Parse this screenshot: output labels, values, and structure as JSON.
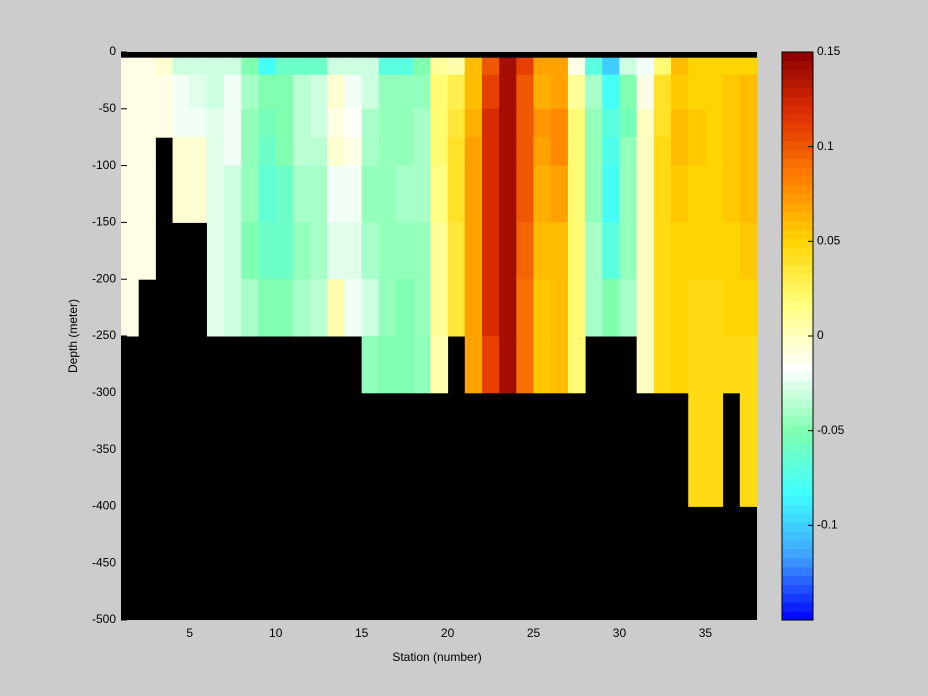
{
  "chart_data": {
    "type": "heatmap",
    "xlabel": "Station (number)",
    "ylabel": "Depth (meter)",
    "x_edges": [
      1,
      2,
      3,
      4,
      5,
      6,
      7,
      8,
      9,
      10,
      11,
      12,
      13,
      14,
      15,
      16,
      17,
      18,
      19,
      20,
      21,
      22,
      23,
      24,
      25,
      26,
      27,
      28,
      29,
      30,
      31,
      32,
      33,
      34,
      35,
      36,
      37,
      38
    ],
    "y_edges": [
      0,
      -5,
      -20,
      -50,
      -75,
      -100,
      -150,
      -200,
      -250,
      -300,
      -400
    ],
    "xlim": [
      1,
      38
    ],
    "ylim": [
      -500,
      0
    ],
    "xticks": [
      5,
      10,
      15,
      20,
      25,
      30,
      35
    ],
    "yticks": [
      0,
      -50,
      -100,
      -150,
      -200,
      -250,
      -300,
      -350,
      -400,
      -450,
      -500
    ],
    "clim": [
      -0.15,
      0.15
    ],
    "cticks": [
      0.15,
      0.1,
      0.05,
      0,
      -0.05,
      -0.1
    ],
    "colormap": [
      "#0000ff",
      "#3fa0ff",
      "#3fffff",
      "#7fffaf",
      "#ffffff",
      "#ffff7f",
      "#ffd500",
      "#ff8000",
      "#e03000",
      "#8b0000"
    ],
    "nan_color": "#000000",
    "z": [
      [
        null,
        -0.01,
        -0.01,
        -0.01,
        -0.01,
        -0.01,
        -0.01,
        -0.01,
        null,
        null
      ],
      [
        null,
        -0.01,
        -0.01,
        -0.01,
        -0.01,
        -0.01,
        -0.01,
        null,
        null,
        null
      ],
      [
        null,
        -0.005,
        -0.01,
        -0.01,
        null,
        null,
        null,
        null,
        null,
        null
      ],
      [
        null,
        -0.03,
        -0.02,
        -0.02,
        -0.005,
        -0.005,
        null,
        null,
        null,
        null
      ],
      [
        null,
        -0.03,
        -0.025,
        -0.02,
        -0.005,
        -0.005,
        null,
        null,
        null,
        null
      ],
      [
        null,
        -0.03,
        -0.03,
        -0.025,
        -0.025,
        -0.025,
        -0.025,
        -0.025,
        null,
        null
      ],
      [
        null,
        -0.03,
        -0.02,
        -0.02,
        -0.02,
        -0.03,
        -0.03,
        -0.03,
        null,
        null
      ],
      [
        null,
        -0.05,
        -0.04,
        -0.045,
        -0.045,
        -0.045,
        -0.05,
        -0.04,
        null,
        null
      ],
      [
        null,
        -0.08,
        -0.05,
        -0.055,
        -0.06,
        -0.065,
        -0.06,
        -0.05,
        null,
        null
      ],
      [
        null,
        -0.06,
        -0.05,
        -0.05,
        -0.05,
        -0.06,
        -0.06,
        -0.05,
        null,
        null
      ],
      [
        null,
        -0.06,
        -0.035,
        -0.035,
        -0.035,
        -0.04,
        -0.045,
        -0.04,
        null,
        null
      ],
      [
        null,
        -0.06,
        -0.03,
        -0.03,
        -0.035,
        -0.04,
        -0.04,
        -0.035,
        null,
        null
      ],
      [
        null,
        -0.03,
        -0.005,
        -0.01,
        -0.005,
        -0.02,
        -0.025,
        0.005,
        null,
        null
      ],
      [
        null,
        -0.03,
        -0.02,
        -0.015,
        -0.01,
        -0.02,
        -0.025,
        -0.02,
        null,
        null
      ],
      [
        null,
        -0.03,
        -0.03,
        -0.04,
        -0.04,
        -0.045,
        -0.04,
        -0.03,
        -0.045,
        null
      ],
      [
        null,
        -0.07,
        -0.045,
        -0.045,
        -0.045,
        -0.045,
        -0.045,
        -0.045,
        -0.05,
        null
      ],
      [
        null,
        -0.07,
        -0.045,
        -0.045,
        -0.045,
        -0.04,
        -0.045,
        -0.05,
        -0.05,
        null
      ],
      [
        null,
        -0.05,
        -0.045,
        -0.04,
        -0.04,
        -0.04,
        -0.045,
        -0.045,
        -0.045,
        null
      ],
      [
        null,
        0.01,
        0.02,
        0.02,
        0.02,
        0.015,
        0.01,
        0.01,
        0.005,
        null
      ],
      [
        null,
        0.005,
        0.03,
        0.035,
        0.04,
        0.04,
        0.035,
        0.035,
        null,
        null
      ],
      [
        null,
        0.06,
        0.06,
        0.065,
        0.07,
        0.07,
        0.07,
        0.07,
        0.07,
        null
      ],
      [
        null,
        0.1,
        0.11,
        0.12,
        0.12,
        0.12,
        0.12,
        0.12,
        0.11,
        null
      ],
      [
        null,
        0.14,
        0.14,
        0.14,
        0.14,
        0.14,
        0.14,
        0.14,
        0.14,
        null
      ],
      [
        null,
        0.11,
        0.1,
        0.1,
        0.1,
        0.1,
        0.095,
        0.09,
        0.09,
        null
      ],
      [
        null,
        0.07,
        0.065,
        0.075,
        0.07,
        0.065,
        0.06,
        0.055,
        0.055,
        null
      ],
      [
        null,
        0.07,
        0.07,
        0.08,
        0.08,
        0.07,
        0.06,
        0.06,
        0.06,
        null
      ],
      [
        null,
        -0.01,
        0.01,
        0.02,
        0.02,
        0.02,
        0.02,
        0.02,
        0.02,
        null
      ],
      [
        null,
        -0.07,
        -0.04,
        -0.045,
        -0.045,
        -0.045,
        -0.04,
        -0.04,
        null,
        null
      ],
      [
        null,
        -0.1,
        -0.08,
        -0.07,
        -0.075,
        -0.08,
        -0.07,
        -0.05,
        null,
        null
      ],
      [
        null,
        -0.03,
        -0.05,
        -0.055,
        -0.045,
        -0.045,
        -0.045,
        -0.04,
        null,
        null
      ],
      [
        null,
        -0.02,
        -0.01,
        0,
        0,
        0,
        0,
        0,
        0,
        null
      ],
      [
        null,
        0.02,
        0.04,
        0.04,
        0.045,
        0.045,
        0.045,
        0.045,
        0.045,
        null
      ],
      [
        null,
        0.06,
        0.055,
        0.06,
        0.06,
        0.055,
        0.05,
        0.05,
        0.05,
        null
      ],
      [
        null,
        0.05,
        0.05,
        0.055,
        0.055,
        0.05,
        0.05,
        0.045,
        0.045,
        0.045
      ],
      [
        null,
        0.05,
        0.05,
        0.05,
        0.05,
        0.05,
        0.05,
        0.045,
        0.045,
        0.045
      ],
      [
        null,
        0.05,
        0.055,
        0.055,
        0.055,
        0.055,
        0.05,
        0.05,
        0.045,
        null
      ],
      [
        null,
        0.05,
        0.06,
        0.06,
        0.06,
        0.06,
        0.055,
        0.05,
        0.045,
        0.045
      ]
    ]
  }
}
